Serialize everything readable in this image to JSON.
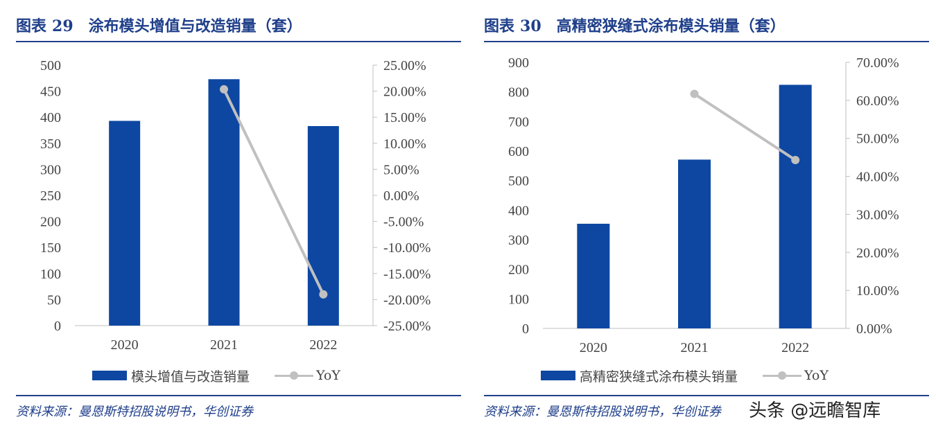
{
  "colors": {
    "bar": "#0d47a1",
    "line": "#c0c0c0",
    "axis": "#bfbfbf",
    "title": "#1f3f8a"
  },
  "watermark": "头条 @远瞻智库",
  "chart_data": [
    {
      "type": "bar",
      "figure_label": "图表",
      "figure_number": "29",
      "title": "涂布模头增值与改造销量（套）",
      "categories": [
        "2020",
        "2021",
        "2022"
      ],
      "series": [
        {
          "name": "模头增值与改造销量",
          "type": "bar",
          "axis": "left",
          "values": [
            393,
            473,
            383
          ]
        },
        {
          "name": "YoY",
          "type": "line",
          "axis": "right",
          "values": [
            null,
            0.2036,
            -0.19
          ]
        }
      ],
      "y_left": {
        "min": 0,
        "max": 500,
        "step": 50,
        "ticks": [
          "0",
          "50",
          "100",
          "150",
          "200",
          "250",
          "300",
          "350",
          "400",
          "450",
          "500"
        ]
      },
      "y_right": {
        "min": -0.25,
        "max": 0.25,
        "step": 0.05,
        "ticks": [
          "-25.00%",
          "-20.00%",
          "-15.00%",
          "-10.00%",
          "-5.00%",
          "0.00%",
          "5.00%",
          "10.00%",
          "15.00%",
          "20.00%",
          "25.00%"
        ]
      },
      "legend": {
        "bar": "模头增值与改造销量",
        "line": "YoY"
      },
      "source": "资料来源：曼恩斯特招股说明书，华创证券"
    },
    {
      "type": "bar",
      "figure_label": "图表",
      "figure_number": "30",
      "title": "高精密狭缝式涂布模头销量（套）",
      "categories": [
        "2020",
        "2021",
        "2022"
      ],
      "series": [
        {
          "name": "高精密狭缝式涂布模头销量",
          "type": "bar",
          "axis": "left",
          "values": [
            354,
            571,
            824
          ]
        },
        {
          "name": "YoY",
          "type": "line",
          "axis": "right",
          "values": [
            null,
            0.617,
            0.443
          ]
        }
      ],
      "y_left": {
        "min": 0,
        "max": 900,
        "step": 100,
        "ticks": [
          "0",
          "100",
          "200",
          "300",
          "400",
          "500",
          "600",
          "700",
          "800",
          "900"
        ]
      },
      "y_right": {
        "min": 0,
        "max": 0.7,
        "step": 0.1,
        "ticks": [
          "0.00%",
          "10.00%",
          "20.00%",
          "30.00%",
          "40.00%",
          "50.00%",
          "60.00%",
          "70.00%"
        ]
      },
      "legend": {
        "bar": "高精密狭缝式涂布模头销量",
        "line": "YoY"
      },
      "source": "资料来源：曼恩斯特招股说明书，华创证券"
    }
  ]
}
